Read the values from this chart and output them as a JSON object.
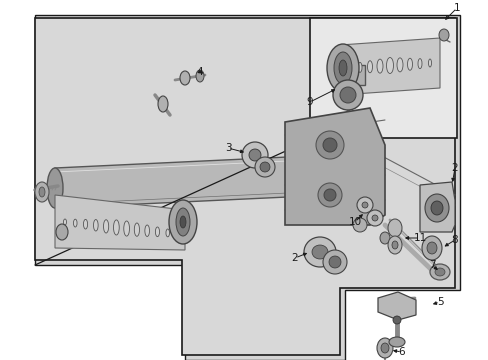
{
  "bg_color": "#ffffff",
  "fig_width": 4.89,
  "fig_height": 3.6,
  "dpi": 100,
  "gray_bg": "#d4d4d4",
  "line_color": "#1a1a1a",
  "part_fill": "#e8e8e8",
  "part_dark": "#888888",
  "part_mid": "#b8b8b8",
  "white_bg": "#f5f5f5"
}
